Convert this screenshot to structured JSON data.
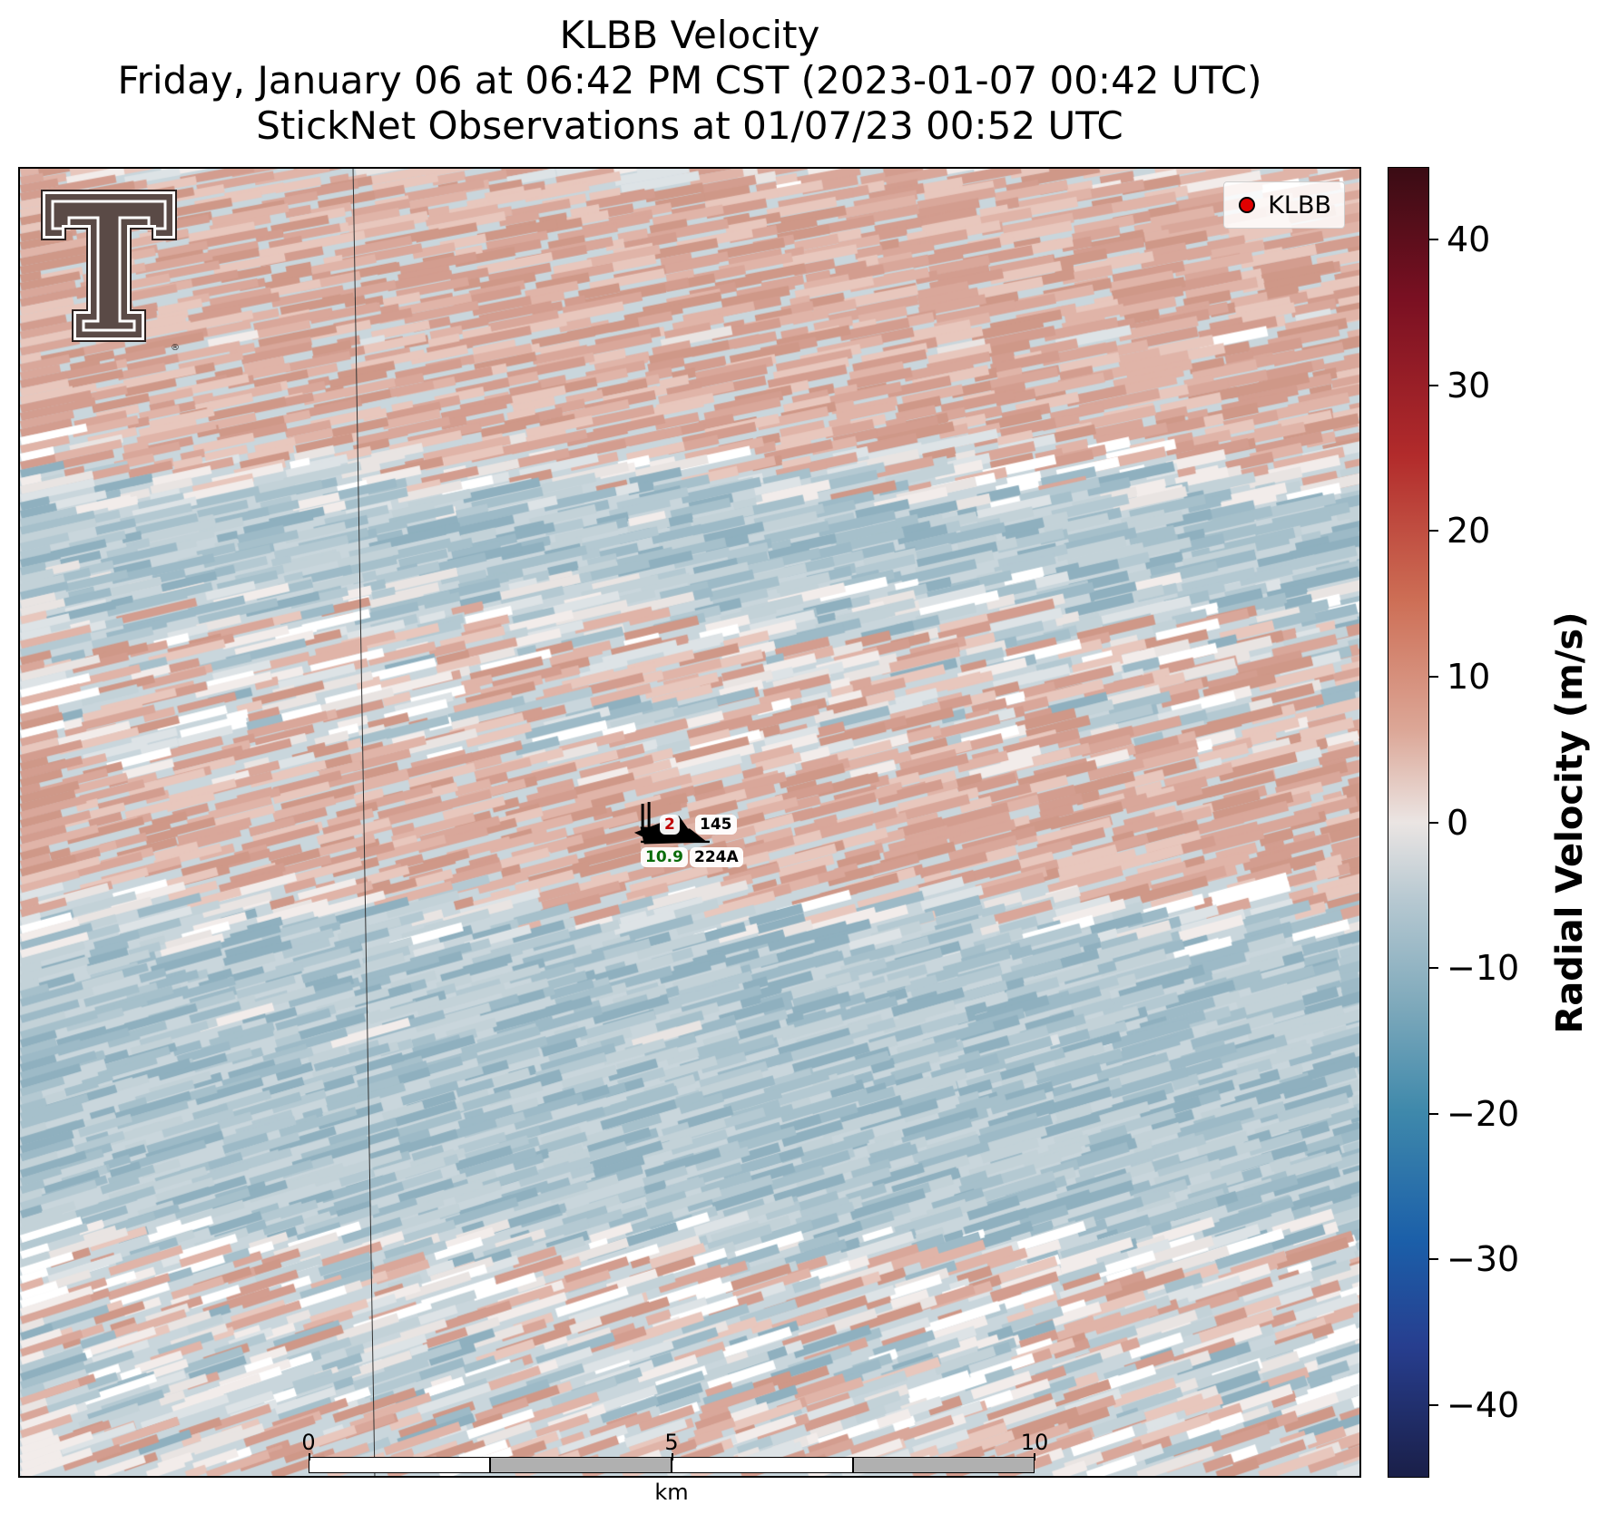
{
  "title": {
    "line1": "KLBB Velocity",
    "line2": "Friday, January 06 at 06:42 PM CST (2023-01-07 00:42 UTC)",
    "line3": "StickNet Observations at 01/07/23 00:52 UTC"
  },
  "legend": {
    "label": "KLBB",
    "marker_color": "#e00000"
  },
  "logo": {
    "name": "texas-tech-double-t-logo",
    "color": "#5a4a46"
  },
  "stations": [
    {
      "id": "145",
      "temperature": "2",
      "dewpoint": ""
    },
    {
      "id": "224A",
      "temperature": "",
      "dewpoint": "10.9"
    }
  ],
  "scalebar": {
    "ticks": [
      "0",
      "5",
      "10"
    ],
    "unit": "km"
  },
  "colorbar": {
    "label": "Radial Velocity (m/s)",
    "min": -45,
    "max": 45,
    "ticks": [
      "40",
      "30",
      "20",
      "10",
      "0",
      "−10",
      "−20",
      "−30",
      "−40"
    ],
    "tick_values": [
      40,
      30,
      20,
      10,
      0,
      -10,
      -20,
      -30,
      -40
    ],
    "colors": [
      "#1a1f48",
      "#273e8f",
      "#1b5fa9",
      "#3f89ab",
      "#7ea9bb",
      "#b6c8d1",
      "#ebe5e3",
      "#dca797",
      "#cd6e55",
      "#b22b2b",
      "#7a1022",
      "#3a0c14"
    ]
  },
  "map": {
    "background": "#c9d6dc",
    "positive_color": "#d7a294",
    "negative_color": "#91b4c3",
    "zero_color": "#ffffff"
  }
}
